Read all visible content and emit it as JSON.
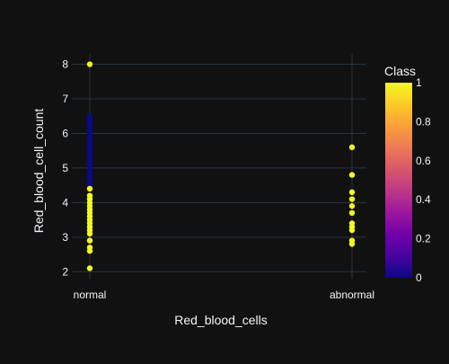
{
  "chart_data": {
    "type": "scatter",
    "title": "",
    "xlabel": "Red_blood_cells",
    "ylabel": "Red_blood_cell_count",
    "categories": [
      "normal",
      "abnormal"
    ],
    "ylim": [
      1.8,
      8.3
    ],
    "y_ticks": [
      "2",
      "3",
      "4",
      "5",
      "6",
      "7",
      "8"
    ],
    "grid": true,
    "colorbar": {
      "title": "Class",
      "ticks": [
        "0",
        "0.2",
        "0.4",
        "0.6",
        "0.8",
        "1"
      ],
      "colorscale": [
        "#0d0887",
        "#46039f",
        "#7201a8",
        "#9c179e",
        "#bd3786",
        "#d8576b",
        "#ed7953",
        "#fb9f3a",
        "#fdca26",
        "#f0f921"
      ]
    },
    "series": [
      {
        "class": 0,
        "color": "#0d0887",
        "points": [
          {
            "x": "normal",
            "y": 4.5
          },
          {
            "x": "normal",
            "y": 4.6
          },
          {
            "x": "normal",
            "y": 4.7
          },
          {
            "x": "normal",
            "y": 4.8
          },
          {
            "x": "normal",
            "y": 4.9
          },
          {
            "x": "normal",
            "y": 5.0
          },
          {
            "x": "normal",
            "y": 5.1
          },
          {
            "x": "normal",
            "y": 5.2
          },
          {
            "x": "normal",
            "y": 5.3
          },
          {
            "x": "normal",
            "y": 5.4
          },
          {
            "x": "normal",
            "y": 5.5
          },
          {
            "x": "normal",
            "y": 5.6
          },
          {
            "x": "normal",
            "y": 5.7
          },
          {
            "x": "normal",
            "y": 5.8
          },
          {
            "x": "normal",
            "y": 5.9
          },
          {
            "x": "normal",
            "y": 6.0
          },
          {
            "x": "normal",
            "y": 6.1
          },
          {
            "x": "normal",
            "y": 6.2
          },
          {
            "x": "normal",
            "y": 6.3
          },
          {
            "x": "normal",
            "y": 6.4
          },
          {
            "x": "normal",
            "y": 6.5
          }
        ]
      },
      {
        "class": 1,
        "color": "#f0f921",
        "points": [
          {
            "x": "normal",
            "y": 8.0
          },
          {
            "x": "normal",
            "y": 4.4
          },
          {
            "x": "normal",
            "y": 4.2
          },
          {
            "x": "normal",
            "y": 4.1
          },
          {
            "x": "normal",
            "y": 4.0
          },
          {
            "x": "normal",
            "y": 3.9
          },
          {
            "x": "normal",
            "y": 3.8
          },
          {
            "x": "normal",
            "y": 3.7
          },
          {
            "x": "normal",
            "y": 3.6
          },
          {
            "x": "normal",
            "y": 3.5
          },
          {
            "x": "normal",
            "y": 3.4
          },
          {
            "x": "normal",
            "y": 3.3
          },
          {
            "x": "normal",
            "y": 3.2
          },
          {
            "x": "normal",
            "y": 3.1
          },
          {
            "x": "normal",
            "y": 2.9
          },
          {
            "x": "normal",
            "y": 2.7
          },
          {
            "x": "normal",
            "y": 2.6
          },
          {
            "x": "normal",
            "y": 2.1
          },
          {
            "x": "abnormal",
            "y": 5.6
          },
          {
            "x": "abnormal",
            "y": 4.8
          },
          {
            "x": "abnormal",
            "y": 4.3
          },
          {
            "x": "abnormal",
            "y": 4.1
          },
          {
            "x": "abnormal",
            "y": 3.9
          },
          {
            "x": "abnormal",
            "y": 3.7
          },
          {
            "x": "abnormal",
            "y": 3.4
          },
          {
            "x": "abnormal",
            "y": 3.3
          },
          {
            "x": "abnormal",
            "y": 3.2
          },
          {
            "x": "abnormal",
            "y": 2.9
          },
          {
            "x": "abnormal",
            "y": 2.8
          }
        ]
      }
    ]
  }
}
